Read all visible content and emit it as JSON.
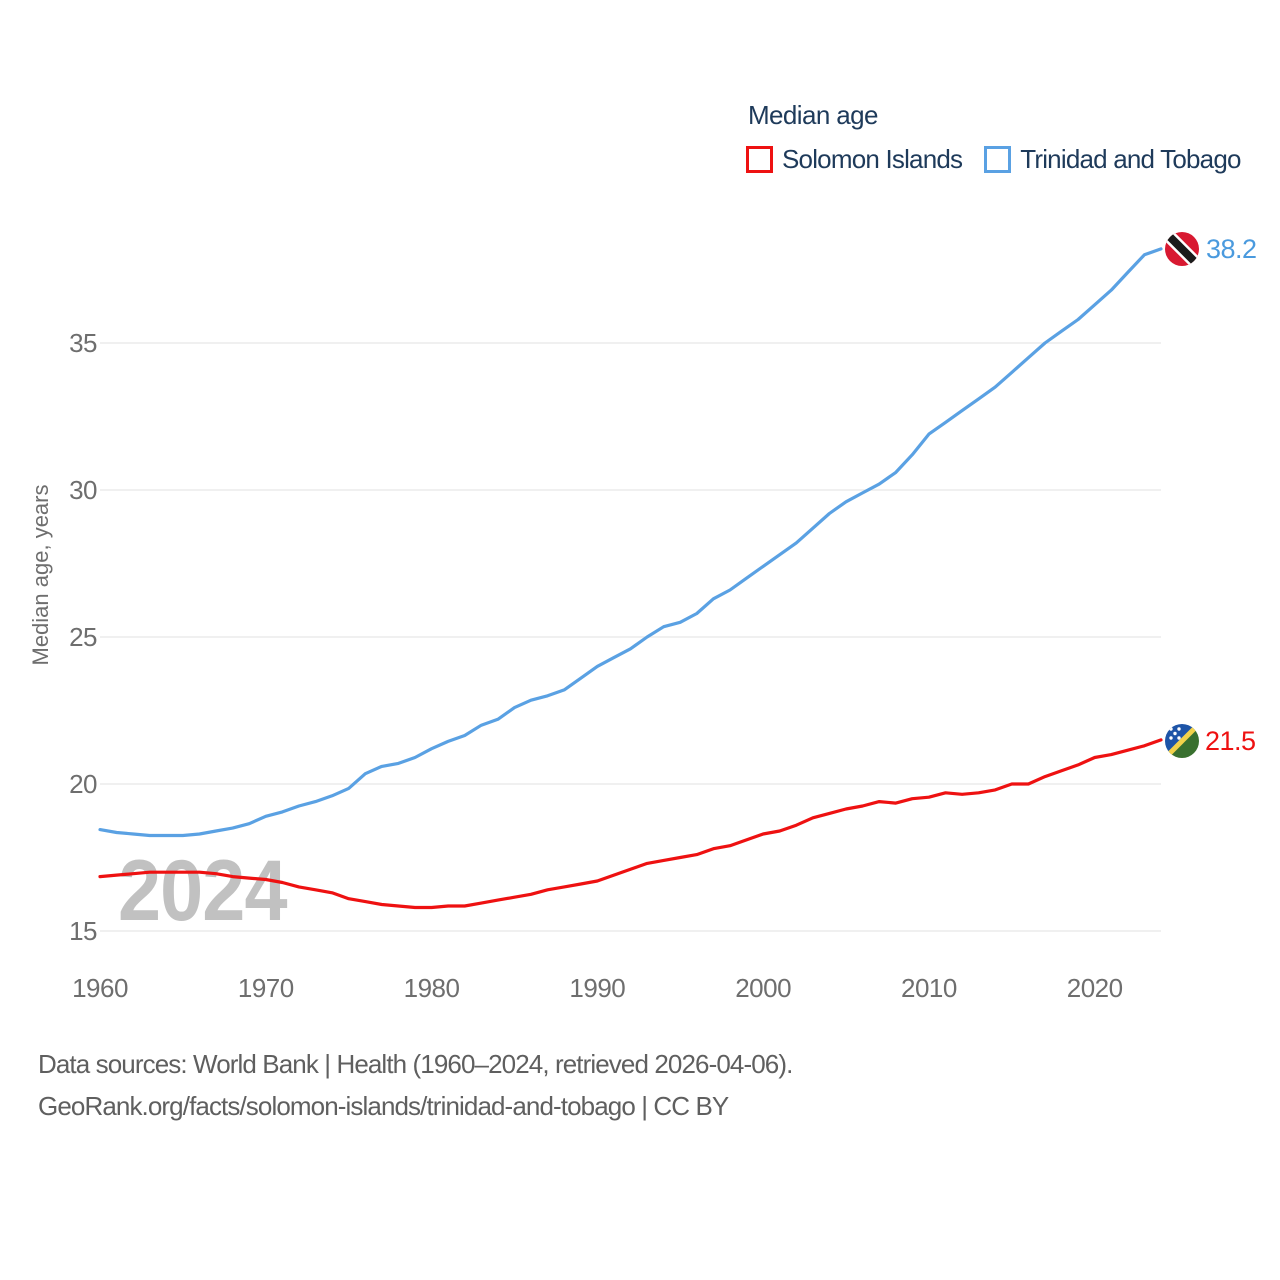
{
  "chart_data": {
    "type": "line",
    "title": "Median age",
    "ylabel": "Median age, years",
    "watermark": "2024",
    "x_range": [
      1960,
      2024
    ],
    "xticks": [
      1960,
      1970,
      1980,
      1990,
      2000,
      2010,
      2020
    ],
    "yticks": [
      15,
      20,
      25,
      30,
      35
    ],
    "ylim": [
      14.0,
      39.5
    ],
    "grid": "horizontal",
    "legend_position": "top-right",
    "series": [
      {
        "name": "Solomon Islands",
        "color": "#ee1111",
        "end_label": "21.5",
        "flag": "solomon-islands",
        "values": [
          16.85,
          16.9,
          16.95,
          17.0,
          17.0,
          17.0,
          17.0,
          16.95,
          16.85,
          16.8,
          16.75,
          16.65,
          16.5,
          16.4,
          16.3,
          16.1,
          16.0,
          15.9,
          15.85,
          15.8,
          15.8,
          15.85,
          15.85,
          15.95,
          16.05,
          16.15,
          16.25,
          16.4,
          16.5,
          16.6,
          16.7,
          16.9,
          17.1,
          17.3,
          17.4,
          17.5,
          17.6,
          17.8,
          17.9,
          18.1,
          18.3,
          18.4,
          18.6,
          18.85,
          19.0,
          19.15,
          19.25,
          19.4,
          19.35,
          19.5,
          19.55,
          19.7,
          19.65,
          19.7,
          19.8,
          20.0,
          20.0,
          20.25,
          20.45,
          20.65,
          20.9,
          21.0,
          21.15,
          21.3,
          21.5
        ]
      },
      {
        "name": "Trinidad and Tobago",
        "color": "#5aa1e3",
        "end_label": "38.2",
        "flag": "trinidad-and-tobago",
        "values": [
          18.45,
          18.35,
          18.3,
          18.25,
          18.25,
          18.25,
          18.3,
          18.4,
          18.5,
          18.65,
          18.9,
          19.05,
          19.25,
          19.4,
          19.6,
          19.85,
          20.35,
          20.6,
          20.7,
          20.9,
          21.2,
          21.45,
          21.65,
          22.0,
          22.2,
          22.6,
          22.85,
          23.0,
          23.2,
          23.6,
          24.0,
          24.3,
          24.6,
          25.0,
          25.35,
          25.5,
          25.8,
          26.3,
          26.6,
          27.0,
          27.4,
          27.8,
          28.2,
          28.7,
          29.2,
          29.6,
          29.9,
          30.2,
          30.6,
          31.2,
          31.9,
          32.3,
          32.7,
          33.1,
          33.5,
          34.0,
          34.5,
          35.0,
          35.4,
          35.8,
          36.3,
          36.8,
          37.4,
          38.0,
          38.2
        ]
      }
    ],
    "colors": {
      "legend_text": "#1e3a5a",
      "tick_text": "#6e6e6e",
      "gridline": "#e8e8e8",
      "watermark": "#c1c1c1",
      "trinidad_flag": {
        "red": "#d81931",
        "black": "#1b1b1b",
        "white": "#ffffff"
      },
      "solomon_flag": {
        "blue": "#1d54a7",
        "green": "#39702f",
        "yellow": "#f2d24b",
        "stars": "#ffffff"
      }
    }
  },
  "footer": {
    "line1": "Data sources: World Bank | Health (1960–2024, retrieved 2026-04-06).",
    "line2": "GeoRank.org/facts/solomon-islands/trinidad-and-tobago | CC BY"
  }
}
